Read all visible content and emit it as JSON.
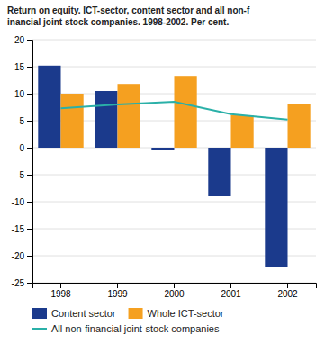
{
  "chart_data": {
    "type": "bar",
    "title": "Return on equity. ICT-sector, content sector and all non-f\ninancial joint stock companies. 1998-2002. Per cent.",
    "categories": [
      "1998",
      "1999",
      "2000",
      "2001",
      "2002"
    ],
    "series": [
      {
        "name": "Content sector",
        "type": "bar",
        "color": "#1b3a8c",
        "values": [
          15.2,
          10.5,
          -0.5,
          -9.0,
          -22.0
        ]
      },
      {
        "name": "Whole ICT-sector",
        "type": "bar",
        "color": "#f5a020",
        "values": [
          10.0,
          11.8,
          13.3,
          6.0,
          8.0
        ]
      },
      {
        "name": "All non-financial joint-stock companies",
        "type": "line",
        "color": "#2ab0a8",
        "values": [
          7.3,
          8.0,
          8.5,
          6.2,
          5.2
        ]
      }
    ],
    "ylim": [
      -25,
      20
    ],
    "yticks": [
      -25,
      -20,
      -15,
      -10,
      -5,
      0,
      5,
      10,
      15,
      20
    ],
    "grid": true,
    "legend": "bottom"
  }
}
